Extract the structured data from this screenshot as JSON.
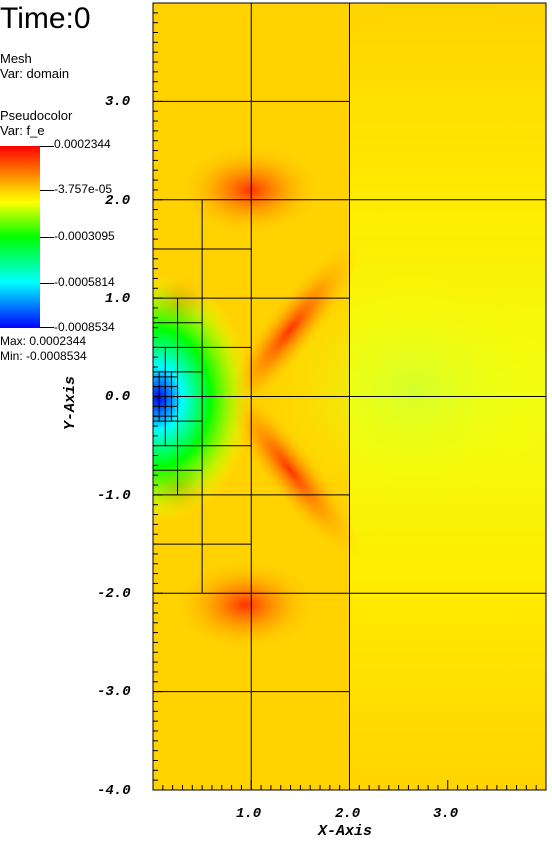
{
  "header": {
    "time_label": "Time:0"
  },
  "mesh_legend": {
    "name": "Mesh",
    "var": "Var: domain"
  },
  "pseudocolor_legend": {
    "name": "Pseudocolor",
    "var": "Var: f_e",
    "ticks": [
      "0.0002344",
      "-3.757e-05",
      "-0.0003095",
      "-0.0005814",
      "-0.0008534"
    ],
    "max_label": "Max:  0.0002344",
    "min_label": "Min: -0.0008534"
  },
  "chart_data": {
    "type": "heatmap",
    "title": "Time:0",
    "xlabel": "X-Axis",
    "ylabel": "Y-Axis",
    "xlim": [
      0,
      4
    ],
    "ylim": [
      -4,
      4
    ],
    "x_ticks": [
      "1.0",
      "2.0",
      "3.0"
    ],
    "y_ticks": [
      "3.0",
      "2.0",
      "1.0",
      "0.0",
      "-1.0",
      "-2.0",
      "-3.0",
      "-4.0"
    ],
    "variable": "f_e",
    "value_range": [
      -0.0008534,
      0.0002344
    ],
    "colormap": [
      "#0000ff",
      "#00ffff",
      "#00ff00",
      "#ffff00",
      "#ffcc00",
      "#ff0000"
    ],
    "mesh_lines": {
      "vertical": [
        {
          "x": 1,
          "y0": -4,
          "y1": 4
        },
        {
          "x": 2,
          "y0": -4,
          "y1": 4
        },
        {
          "x": 0.5,
          "y0": -2,
          "y1": 2
        },
        {
          "x": 0.25,
          "y0": -1,
          "y1": 1
        },
        {
          "x": 0.125,
          "y0": -0.5,
          "y1": 0.5
        }
      ],
      "horizontal": [
        {
          "y": 3,
          "x0": 0,
          "x1": 2
        },
        {
          "y": -3,
          "x0": 0,
          "x1": 2
        },
        {
          "y": 2,
          "x0": 0,
          "x1": 4
        },
        {
          "y": 0,
          "x0": 0,
          "x1": 4
        },
        {
          "y": -2,
          "x0": 0,
          "x1": 4
        },
        {
          "y": 1,
          "x0": 0,
          "x1": 2
        },
        {
          "y": -1,
          "x0": 0,
          "x1": 2
        },
        {
          "y": 1.5,
          "x0": 0,
          "x1": 1
        },
        {
          "y": 0.5,
          "x0": 0,
          "x1": 1
        },
        {
          "y": -0.5,
          "x0": 0,
          "x1": 1
        },
        {
          "y": -1.5,
          "x0": 0,
          "x1": 1
        },
        {
          "y": 0.75,
          "x0": 0,
          "x1": 0.5
        },
        {
          "y": 0.25,
          "x0": 0,
          "x1": 0.5
        },
        {
          "y": -0.25,
          "x0": 0,
          "x1": 0.5
        },
        {
          "y": -0.75,
          "x0": 0,
          "x1": 0.5
        }
      ]
    }
  }
}
